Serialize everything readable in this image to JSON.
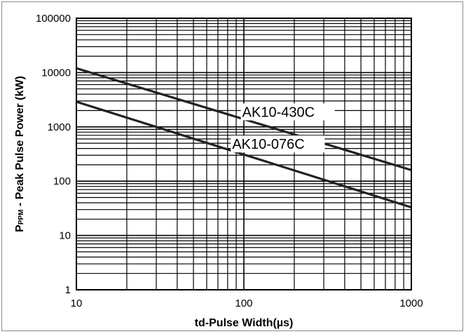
{
  "chart_data": {
    "type": "line",
    "title": "",
    "xlabel": "td-Pulse Width(µs)",
    "ylabel": {
      "main": "P",
      "subscript": "PPM",
      "rest": " - Peak Pulse Power (kW)"
    },
    "x_scale": "log",
    "y_scale": "log",
    "xlim": [
      10,
      1000
    ],
    "ylim": [
      1,
      100000
    ],
    "x_ticks": [
      10,
      100,
      1000
    ],
    "x_tick_labels": [
      "10",
      "100",
      "1000"
    ],
    "y_ticks": [
      1,
      10,
      100,
      1000,
      10000,
      100000
    ],
    "y_tick_labels": [
      "1",
      "10",
      "100",
      "1000",
      "10000",
      "100000"
    ],
    "grid": true,
    "series": [
      {
        "name": "AK10-430C",
        "x": [
          10,
          1000
        ],
        "y": [
          12000,
          160
        ],
        "color": "#222222"
      },
      {
        "name": "AK10-076C",
        "x": [
          10,
          1000
        ],
        "y": [
          2900,
          33
        ],
        "color": "#222222"
      }
    ]
  }
}
